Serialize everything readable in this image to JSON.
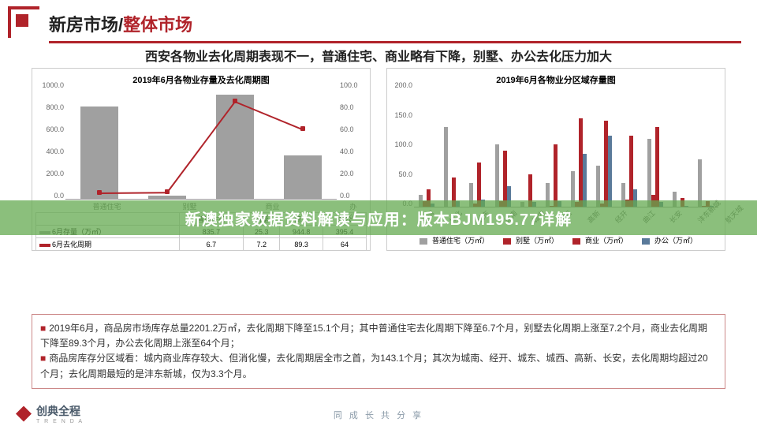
{
  "header": {
    "t1": "新房市场/",
    "t2": "整体市场"
  },
  "subtitle": "西安各物业去化周期表现不一，普通住宅、商业略有下降，别墅、办公去化压力加大",
  "overlay": "新澳独家数据资料解读与应用：版本BJM195.77详解",
  "colors": {
    "accent": "#b0232a",
    "bar_grey": "#a0a0a0",
    "series": [
      "#a0a0a0",
      "#b0232a",
      "#b0232a",
      "#5a7a9a"
    ],
    "overlay_bg": "rgba(100,170,80,.75)"
  },
  "left_chart": {
    "title": "2019年6月各物业存量及去化周期图",
    "categories": [
      "普通住宅",
      "别墅",
      "商业",
      "办公"
    ],
    "bars": {
      "label": "6月存量（万㎡）",
      "values": [
        835.7,
        25.3,
        944.8,
        395.4
      ],
      "ylim": [
        0,
        1000
      ],
      "ystep": 200,
      "color": "#a0a0a0"
    },
    "line": {
      "label": "6月去化周期",
      "values": [
        6.7,
        7.2,
        89.3,
        64.0
      ],
      "ylim": [
        0,
        100
      ],
      "ystep": 20,
      "color": "#b0232a"
    }
  },
  "right_chart": {
    "title": "2019年6月各物业分区域存量图",
    "ylim": [
      0,
      200
    ],
    "ystep": 50,
    "categories": [
      "沣渭",
      "城北",
      "城东",
      "城南",
      "城内",
      "城西",
      "高新",
      "经开",
      "曲江",
      "长安",
      "沣东新城",
      "航天城"
    ],
    "series": [
      {
        "name": "普通住宅（万㎡）",
        "color": "#a0a0a0",
        "values": [
          20,
          135,
          40,
          105,
          8,
          40,
          60,
          70,
          40,
          115,
          25,
          80
        ]
      },
      {
        "name": "别墅（万㎡）",
        "color": "#b0232a",
        "values": [
          10,
          0,
          5,
          10,
          0,
          2,
          8,
          5,
          12,
          20,
          0,
          2
        ]
      },
      {
        "name": "商业（万㎡）",
        "color": "#b0232a",
        "values": [
          30,
          50,
          75,
          95,
          55,
          105,
          150,
          145,
          120,
          135,
          15,
          10
        ]
      },
      {
        "name": "办公（万㎡）",
        "color": "#5a7a9a",
        "values": [
          5,
          10,
          12,
          35,
          8,
          10,
          90,
          120,
          30,
          8,
          2,
          2
        ]
      }
    ]
  },
  "notes": {
    "n1": "2019年6月，商品房市场库存总量2201.2万㎡，去化周期下降至15.1个月；其中普通住宅去化周期下降至6.7个月，别墅去化周期上涨至7.2个月，商业去化周期下降至89.3个月，办公去化周期上涨至64个月；",
    "n2": "商品房库存分区域看：城内商业库存较大、但消化慢，去化周期居全市之首，为143.1个月；其次为城南、经开、城东、城西、高新、长安，去化周期均超过20个月；去化周期最短的是沣东新城，仅为3.3个月。"
  },
  "footer": {
    "brand": "创典全程",
    "sub": "T R E N D A",
    "motto": "同 成 长  共 分 享"
  }
}
